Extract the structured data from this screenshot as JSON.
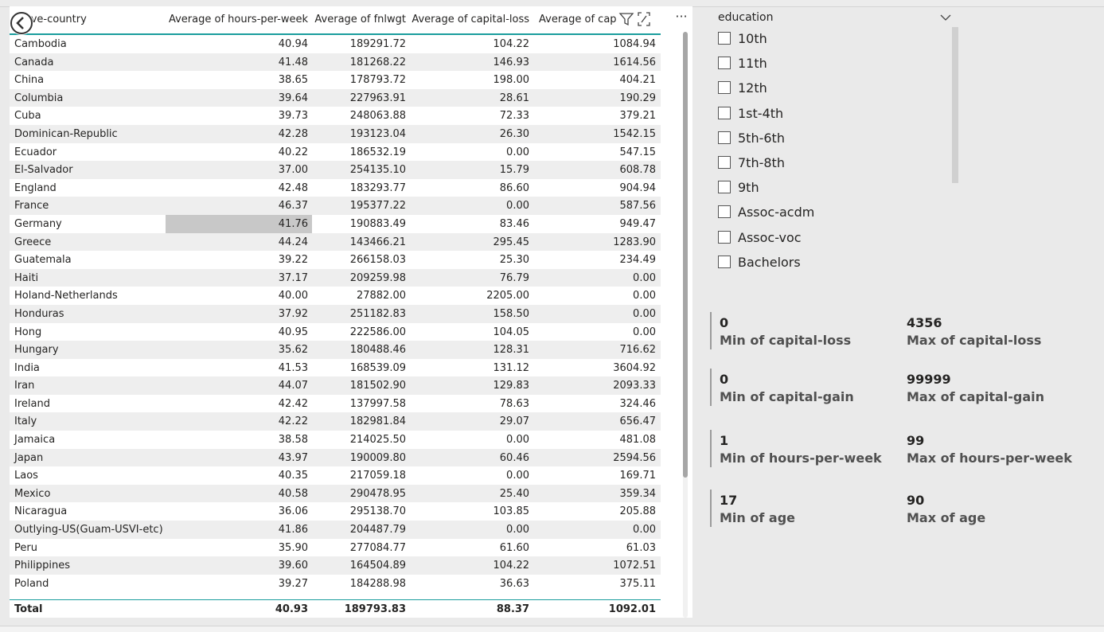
{
  "table": {
    "columns": [
      "native-country",
      "Average of hours-per-week",
      "Average of fnlwgt",
      "Average of capital-loss",
      "Average of capital-gain"
    ],
    "header_visible": [
      "tive-country",
      "Average of hours-per-week",
      "Average of fnlwgt",
      "Average of capital-loss",
      "Average of cap"
    ],
    "rows": [
      {
        "country": "Cambodia",
        "hours": "40.94",
        "fnlwgt": "189291.72",
        "loss": "104.22",
        "gain": "1084.94"
      },
      {
        "country": "Canada",
        "hours": "41.48",
        "fnlwgt": "181268.22",
        "loss": "146.93",
        "gain": "1614.56"
      },
      {
        "country": "China",
        "hours": "38.65",
        "fnlwgt": "178793.72",
        "loss": "198.00",
        "gain": "404.21"
      },
      {
        "country": "Columbia",
        "hours": "39.64",
        "fnlwgt": "227963.91",
        "loss": "28.61",
        "gain": "190.29"
      },
      {
        "country": "Cuba",
        "hours": "39.73",
        "fnlwgt": "248063.88",
        "loss": "72.33",
        "gain": "379.21"
      },
      {
        "country": "Dominican-Republic",
        "hours": "42.28",
        "fnlwgt": "193123.04",
        "loss": "26.30",
        "gain": "1542.15"
      },
      {
        "country": "Ecuador",
        "hours": "40.22",
        "fnlwgt": "186532.19",
        "loss": "0.00",
        "gain": "547.15"
      },
      {
        "country": "El-Salvador",
        "hours": "37.00",
        "fnlwgt": "254135.10",
        "loss": "15.79",
        "gain": "608.78"
      },
      {
        "country": "England",
        "hours": "42.48",
        "fnlwgt": "183293.77",
        "loss": "86.60",
        "gain": "904.94"
      },
      {
        "country": "France",
        "hours": "46.37",
        "fnlwgt": "195377.22",
        "loss": "0.00",
        "gain": "587.56"
      },
      {
        "country": "Germany",
        "hours": "41.76",
        "fnlwgt": "190883.49",
        "loss": "83.46",
        "gain": "949.47"
      },
      {
        "country": "Greece",
        "hours": "44.24",
        "fnlwgt": "143466.21",
        "loss": "295.45",
        "gain": "1283.90"
      },
      {
        "country": "Guatemala",
        "hours": "39.22",
        "fnlwgt": "266158.03",
        "loss": "25.30",
        "gain": "234.49"
      },
      {
        "country": "Haiti",
        "hours": "37.17",
        "fnlwgt": "209259.98",
        "loss": "76.79",
        "gain": "0.00"
      },
      {
        "country": "Holand-Netherlands",
        "hours": "40.00",
        "fnlwgt": "27882.00",
        "loss": "2205.00",
        "gain": "0.00"
      },
      {
        "country": "Honduras",
        "hours": "37.92",
        "fnlwgt": "251182.83",
        "loss": "158.50",
        "gain": "0.00"
      },
      {
        "country": "Hong",
        "hours": "40.95",
        "fnlwgt": "222586.00",
        "loss": "104.05",
        "gain": "0.00"
      },
      {
        "country": "Hungary",
        "hours": "35.62",
        "fnlwgt": "180488.46",
        "loss": "128.31",
        "gain": "716.62"
      },
      {
        "country": "India",
        "hours": "41.53",
        "fnlwgt": "168539.09",
        "loss": "131.12",
        "gain": "3604.92"
      },
      {
        "country": "Iran",
        "hours": "44.07",
        "fnlwgt": "181502.90",
        "loss": "129.83",
        "gain": "2093.33"
      },
      {
        "country": "Ireland",
        "hours": "42.42",
        "fnlwgt": "137997.58",
        "loss": "78.63",
        "gain": "324.46"
      },
      {
        "country": "Italy",
        "hours": "42.22",
        "fnlwgt": "182981.84",
        "loss": "29.07",
        "gain": "656.47"
      },
      {
        "country": "Jamaica",
        "hours": "38.58",
        "fnlwgt": "214025.50",
        "loss": "0.00",
        "gain": "481.08"
      },
      {
        "country": "Japan",
        "hours": "43.97",
        "fnlwgt": "190009.80",
        "loss": "60.46",
        "gain": "2594.56"
      },
      {
        "country": "Laos",
        "hours": "40.35",
        "fnlwgt": "217059.18",
        "loss": "0.00",
        "gain": "169.71"
      },
      {
        "country": "Mexico",
        "hours": "40.58",
        "fnlwgt": "290478.95",
        "loss": "25.40",
        "gain": "359.34"
      },
      {
        "country": "Nicaragua",
        "hours": "36.06",
        "fnlwgt": "295138.70",
        "loss": "103.85",
        "gain": "205.88"
      },
      {
        "country": "Outlying-US(Guam-USVI-etc)",
        "hours": "41.86",
        "fnlwgt": "204487.79",
        "loss": "0.00",
        "gain": "0.00"
      },
      {
        "country": "Peru",
        "hours": "35.90",
        "fnlwgt": "277084.77",
        "loss": "61.60",
        "gain": "61.03"
      },
      {
        "country": "Philippines",
        "hours": "39.60",
        "fnlwgt": "164504.89",
        "loss": "104.22",
        "gain": "1072.51"
      },
      {
        "country": "Poland",
        "hours": "39.27",
        "fnlwgt": "184288.98",
        "loss": "36.63",
        "gain": "375.11"
      }
    ],
    "highlighted_row": "Germany",
    "total": {
      "label": "Total",
      "hours": "40.93",
      "fnlwgt": "189793.83",
      "loss": "88.37",
      "gain": "1092.01"
    }
  },
  "toolbar": {
    "more_label": "···"
  },
  "slicer": {
    "title": "education",
    "items": [
      "10th",
      "11th",
      "12th",
      "1st-4th",
      "5th-6th",
      "7th-8th",
      "9th",
      "Assoc-acdm",
      "Assoc-voc",
      "Bachelors"
    ]
  },
  "cards": [
    {
      "value": "0",
      "label": "Min of capital-loss"
    },
    {
      "value": "4356",
      "label": "Max of capital-loss"
    },
    {
      "value": "0",
      "label": "Min of capital-gain"
    },
    {
      "value": "99999",
      "label": "Max of capital-gain"
    },
    {
      "value": "1",
      "label": "Min of hours-per-week"
    },
    {
      "value": "99",
      "label": "Max of hours-per-week"
    },
    {
      "value": "17",
      "label": "Min of age"
    },
    {
      "value": "90",
      "label": "Max of age"
    }
  ],
  "colors": {
    "accent": "#1a9d9d",
    "row_alt": "#eeeeee",
    "highlight": "#c8c8c8",
    "card_bar": "#9b9b9b"
  }
}
